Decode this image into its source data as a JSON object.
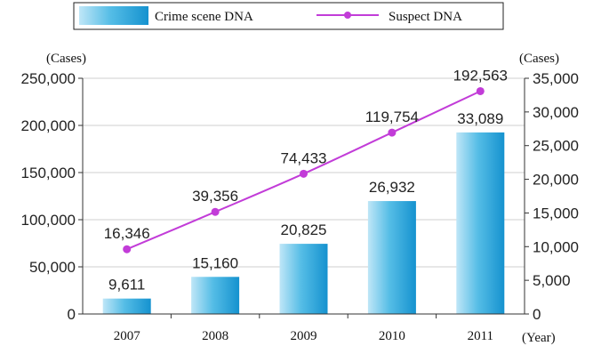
{
  "chart_data": {
    "type": "bar+line",
    "categories": [
      "2007",
      "2008",
      "2009",
      "2010",
      "2011"
    ],
    "series": [
      {
        "name": "Crime scene DNA",
        "type": "bar",
        "axis": "left",
        "values": [
          16346,
          39356,
          74433,
          119754,
          192563
        ],
        "value_labels": [
          "16,346",
          "39,356",
          "74,433",
          "119,754",
          "192,563"
        ],
        "color": "#2aa6d9"
      },
      {
        "name": "Suspect DNA",
        "type": "line",
        "axis": "right",
        "values": [
          9611,
          15160,
          20825,
          26932,
          33089
        ],
        "value_labels": [
          "9,611",
          "15,160",
          "20,825",
          "26,932",
          "33,089"
        ],
        "color": "#c23cd8"
      }
    ],
    "left_axis": {
      "unit": "(Cases)",
      "range": [
        0,
        250000
      ],
      "ticks": [
        "0",
        "50,000",
        "100,000",
        "150,000",
        "200,000",
        "250,000"
      ]
    },
    "right_axis": {
      "unit": "(Cases)",
      "range": [
        0,
        35000
      ],
      "ticks": [
        "0",
        "5,000",
        "10,000",
        "15,000",
        "20,000",
        "25,000",
        "30,000",
        "35,000"
      ]
    },
    "x_unit": "(Year)",
    "grid": "horizontal",
    "legend": "top"
  }
}
